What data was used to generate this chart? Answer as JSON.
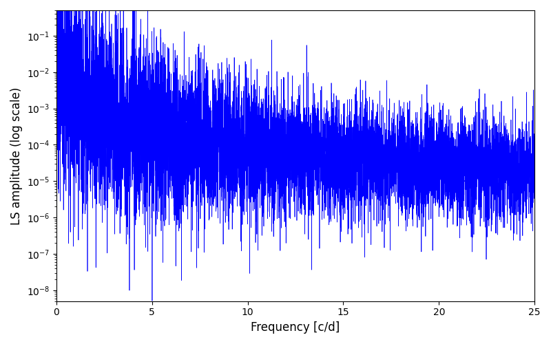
{
  "xlabel": "Frequency [c/d]",
  "ylabel": "LS amplitude (log scale)",
  "xlim": [
    0,
    25
  ],
  "ylim": [
    5e-09,
    0.5
  ],
  "line_color": "#0000ff",
  "line_width": 0.5,
  "background_color": "#ffffff",
  "seed": 12345,
  "n_points": 8000,
  "freq_max": 25.0,
  "xlabel_fontsize": 12,
  "ylabel_fontsize": 12,
  "tick_fontsize": 10
}
